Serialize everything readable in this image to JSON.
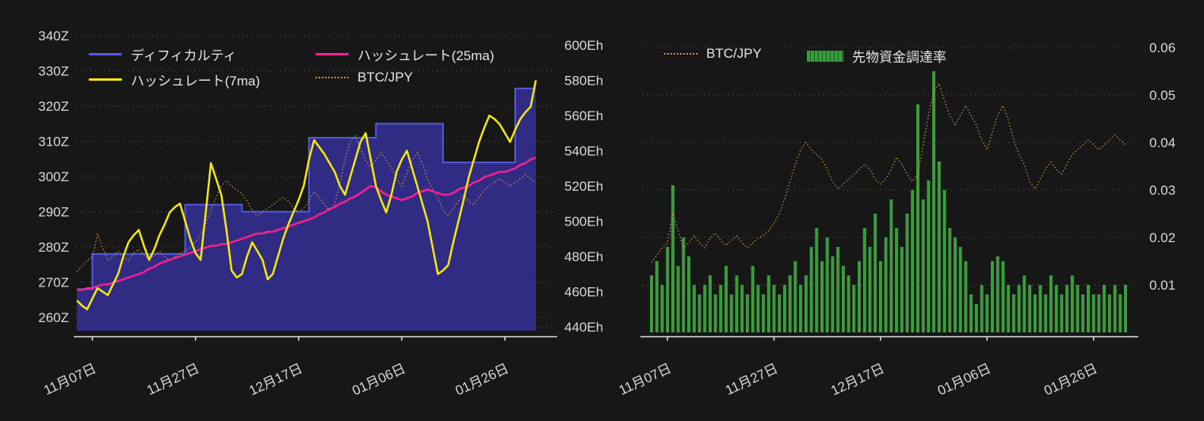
{
  "colors": {
    "background": "#171717",
    "difficulty": "#5557e6",
    "difficulty_fill": "#302c84",
    "hashrate_7ma": "#f5e90a",
    "hashrate_25ma": "#ff1f8f",
    "btc_jpy": "#c8973f",
    "funding": "#3c9c3d",
    "grid": "#3e3e3e",
    "axis_text": "#d9d9d9",
    "axis_line": "#e3e3e3"
  },
  "chart_data": [
    {
      "type": "line",
      "title": "",
      "legend": [
        {
          "label": "ディフィカルティ",
          "color": "#5557e6",
          "style": "line"
        },
        {
          "label": "ハッシュレート(25ma)",
          "color": "#ff1f8f",
          "style": "line"
        },
        {
          "label": "ハッシュレート(7ma)",
          "color": "#f5e90a",
          "style": "line"
        },
        {
          "label": "BTC/JPY",
          "color": "#c8973f",
          "style": "dotted"
        }
      ],
      "left_axis": {
        "unit": "Z",
        "ticks": [
          340,
          330,
          320,
          310,
          300,
          290,
          280,
          270,
          260
        ],
        "min": 260,
        "max": 340
      },
      "right_axis": {
        "unit": "Eh/s",
        "ticks": [
          600,
          580,
          560,
          540,
          520,
          500,
          480,
          460,
          440
        ],
        "min": 440,
        "max": 600
      },
      "x_ticks": [
        "11月07日",
        "11月27日",
        "12月17日",
        "01月06日",
        "01月26日"
      ],
      "x_tick_days": [
        3,
        23,
        43,
        63,
        83
      ],
      "series": {
        "difficulty_Z": [
          268,
          268,
          268,
          278,
          278,
          278,
          278,
          278,
          278,
          278,
          278,
          278,
          278,
          278,
          278,
          278,
          278,
          278,
          278,
          278,
          278,
          292,
          292,
          292,
          292,
          292,
          292,
          292,
          292,
          292,
          292,
          292,
          290,
          290,
          290,
          290,
          290,
          290,
          290,
          290,
          290,
          290,
          290,
          290,
          290,
          311,
          311,
          311,
          311,
          311,
          311,
          311,
          311,
          311,
          311,
          311,
          311,
          311,
          315,
          315,
          315,
          315,
          315,
          315,
          315,
          315,
          315,
          315,
          315,
          315,
          315,
          304,
          304,
          304,
          304,
          304,
          304,
          304,
          304,
          304,
          304,
          304,
          304,
          304,
          304,
          325,
          325,
          325,
          325,
          325
        ],
        "hashrate_7ma_Eh": [
          455,
          452,
          450,
          456,
          462,
          460,
          458,
          464,
          470,
          480,
          488,
          492,
          495,
          486,
          478,
          484,
          492,
          498,
          505,
          508,
          510,
          500,
          490,
          482,
          478,
          505,
          533,
          524,
          515,
          495,
          472,
          468,
          470,
          480,
          488,
          483,
          478,
          467,
          470,
          480,
          490,
          498,
          505,
          512,
          520,
          535,
          546,
          542,
          538,
          533,
          528,
          520,
          515,
          525,
          535,
          545,
          550,
          535,
          520,
          512,
          505,
          515,
          528,
          535,
          540,
          530,
          520,
          510,
          500,
          485,
          470,
          472,
          475,
          488,
          500,
          512,
          525,
          535,
          545,
          553,
          560,
          558,
          555,
          550,
          545,
          552,
          558,
          562,
          565,
          580
        ],
        "hashrate_25ma_Eh": [
          461,
          461,
          462,
          462,
          463,
          464,
          464,
          465,
          466,
          467,
          468,
          469,
          470,
          471,
          473,
          474,
          476,
          477,
          478,
          479,
          480,
          481,
          482,
          483,
          484,
          485,
          486,
          486,
          487,
          487,
          488,
          489,
          490,
          491,
          492,
          493,
          493,
          494,
          494,
          495,
          496,
          497,
          498,
          499,
          500,
          501,
          502,
          504,
          505,
          507,
          508,
          510,
          511,
          513,
          514,
          516,
          518,
          520,
          519,
          517,
          515,
          514,
          513,
          512,
          513,
          514,
          516,
          517,
          518,
          517,
          516,
          515,
          515,
          516,
          518,
          519,
          520,
          522,
          523,
          525,
          526,
          527,
          528,
          528,
          529,
          530,
          532,
          533,
          535,
          536
        ],
        "btc_jpy_norm": [
          0.22,
          0.25,
          0.28,
          0.3,
          0.42,
          0.35,
          0.28,
          0.3,
          0.33,
          0.3,
          0.28,
          0.32,
          0.34,
          0.31,
          0.29,
          0.31,
          0.33,
          0.3,
          0.28,
          0.3,
          0.32,
          0.33,
          0.35,
          0.38,
          0.42,
          0.48,
          0.55,
          0.62,
          0.68,
          0.71,
          0.68,
          0.66,
          0.64,
          0.6,
          0.55,
          0.52,
          0.54,
          0.56,
          0.58,
          0.6,
          0.62,
          0.6,
          0.56,
          0.54,
          0.56,
          0.6,
          0.65,
          0.62,
          0.58,
          0.55,
          0.58,
          0.7,
          0.82,
          0.92,
          0.95,
          0.88,
          0.82,
          0.78,
          0.82,
          0.86,
          0.82,
          0.78,
          0.72,
          0.68,
          0.75,
          0.82,
          0.86,
          0.8,
          0.72,
          0.66,
          0.62,
          0.55,
          0.52,
          0.56,
          0.6,
          0.63,
          0.6,
          0.58,
          0.62,
          0.66,
          0.68,
          0.7,
          0.72,
          0.7,
          0.68,
          0.7,
          0.72,
          0.74,
          0.72,
          0.7
        ]
      }
    },
    {
      "type": "bar",
      "title": "",
      "legend": [
        {
          "label": "BTC/JPY",
          "color": "#c8973f",
          "style": "dotted"
        },
        {
          "label": "先物資金調達率",
          "color": "#3c9c3d",
          "style": "bar"
        }
      ],
      "right_axis": {
        "unit": "",
        "ticks": [
          0.06,
          0.05,
          0.04,
          0.03,
          0.02,
          0.01
        ],
        "min": 0,
        "max": 0.06
      },
      "x_ticks": [
        "11月07日",
        "11月27日",
        "12月17日",
        "01月06日",
        "01月26日"
      ],
      "x_tick_days": [
        3,
        23,
        43,
        63,
        83
      ],
      "series": {
        "funding_rate": [
          0.012,
          0.015,
          0.01,
          0.018,
          0.031,
          0.014,
          0.02,
          0.016,
          0.01,
          0.008,
          0.01,
          0.012,
          0.008,
          0.01,
          0.014,
          0.008,
          0.012,
          0.01,
          0.008,
          0.014,
          0.01,
          0.008,
          0.012,
          0.01,
          0.008,
          0.01,
          0.012,
          0.015,
          0.01,
          0.012,
          0.018,
          0.022,
          0.015,
          0.02,
          0.016,
          0.018,
          0.014,
          0.012,
          0.01,
          0.015,
          0.022,
          0.018,
          0.025,
          0.015,
          0.02,
          0.028,
          0.022,
          0.018,
          0.025,
          0.03,
          0.048,
          0.028,
          0.032,
          0.055,
          0.036,
          0.03,
          0.022,
          0.02,
          0.018,
          0.015,
          0.008,
          0.006,
          0.01,
          0.008,
          0.015,
          0.016,
          0.015,
          0.01,
          0.008,
          0.01,
          0.012,
          0.01,
          0.008,
          0.01,
          0.008,
          0.012,
          0.01,
          0.008,
          0.01,
          0.012,
          0.01,
          0.008,
          0.01,
          0.008,
          0.008,
          0.01,
          0.008,
          0.01,
          0.008,
          0.01
        ],
        "btc_jpy_norm": [
          0.22,
          0.25,
          0.28,
          0.3,
          0.42,
          0.35,
          0.28,
          0.3,
          0.33,
          0.3,
          0.28,
          0.32,
          0.34,
          0.31,
          0.29,
          0.31,
          0.33,
          0.3,
          0.28,
          0.3,
          0.32,
          0.33,
          0.35,
          0.38,
          0.42,
          0.48,
          0.55,
          0.62,
          0.68,
          0.71,
          0.68,
          0.66,
          0.64,
          0.6,
          0.55,
          0.52,
          0.54,
          0.56,
          0.58,
          0.6,
          0.62,
          0.6,
          0.56,
          0.54,
          0.56,
          0.6,
          0.65,
          0.62,
          0.58,
          0.55,
          0.58,
          0.7,
          0.82,
          0.92,
          0.95,
          0.88,
          0.82,
          0.78,
          0.82,
          0.86,
          0.82,
          0.78,
          0.72,
          0.68,
          0.75,
          0.82,
          0.86,
          0.8,
          0.72,
          0.66,
          0.62,
          0.55,
          0.52,
          0.56,
          0.6,
          0.63,
          0.6,
          0.58,
          0.62,
          0.66,
          0.68,
          0.7,
          0.72,
          0.7,
          0.68,
          0.7,
          0.72,
          0.74,
          0.72,
          0.7
        ]
      }
    }
  ]
}
